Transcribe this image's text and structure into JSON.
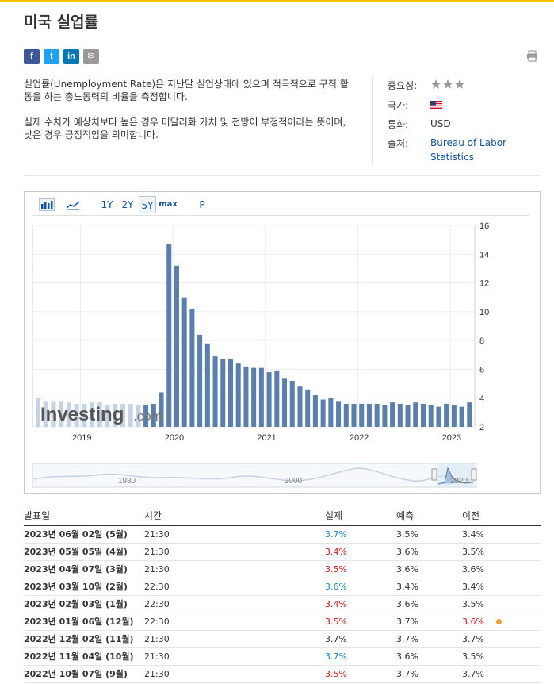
{
  "page": {
    "title": "미국 실업률"
  },
  "share": {
    "facebook": "f",
    "twitter": "t",
    "linkedin": "in",
    "email": "✉"
  },
  "description": {
    "p1": "실업률(Unemployment Rate)은 지난달 실업상태에 있으며 적극적으로 구직 활동을 하는 총노동력의 비율을 측정합니다.",
    "p2": "실제 수치가 예상치보다 높은 경우 미달러화 가치 및 전망이 부정적이라는 뜻이며, 낮은 경우 긍정적임을 의미합니다."
  },
  "meta": {
    "importance_label": "중요성:",
    "importance_stars": 3,
    "country_label": "국가:",
    "currency_label": "통화:",
    "currency_value": "USD",
    "source_label": "출처:",
    "source_value": "Bureau of Labor Statistics"
  },
  "chart_toolbar": {
    "buttons": [
      "1Y",
      "2Y",
      "5Y",
      "max",
      "P"
    ],
    "selected": "5Y"
  },
  "watermark": {
    "brand": "Investing",
    "suffix": ".com"
  },
  "chart_data": {
    "type": "bar",
    "ylim": [
      2,
      16
    ],
    "yticks": [
      "16",
      "14",
      "12",
      "10",
      "8",
      "6",
      "4",
      "2"
    ],
    "xticks": [
      "2019",
      "2020",
      "2021",
      "2022",
      "2023"
    ],
    "values": [
      4.0,
      3.8,
      3.8,
      3.8,
      3.7,
      3.6,
      3.6,
      3.7,
      3.7,
      3.5,
      3.6,
      3.6,
      3.6,
      3.5,
      3.5,
      3.6,
      4.4,
      14.7,
      13.2,
      11.0,
      10.2,
      8.4,
      7.8,
      6.9,
      6.7,
      6.7,
      6.4,
      6.2,
      6.1,
      6.1,
      5.8,
      5.9,
      5.4,
      5.2,
      4.8,
      4.6,
      4.2,
      3.9,
      4.0,
      3.8,
      3.6,
      3.6,
      3.6,
      3.6,
      3.6,
      3.5,
      3.7,
      3.6,
      3.5,
      3.7,
      3.6,
      3.5,
      3.4,
      3.6,
      3.5,
      3.4,
      3.7
    ]
  },
  "navigator": {
    "labels": [
      "1980",
      "2000",
      "2020"
    ]
  },
  "table": {
    "headers": {
      "date": "발표일",
      "time": "시간",
      "actual": "실제",
      "forecast": "예측",
      "previous": "이전"
    },
    "rows": [
      {
        "date": "2023년 06월 02일 (5월)",
        "time": "21:30",
        "actual": "3.7%",
        "actual_color": "blue",
        "forecast": "3.5%",
        "previous": "3.4%",
        "previous_color": ""
      },
      {
        "date": "2023년 05월 05일 (4월)",
        "time": "21:30",
        "actual": "3.4%",
        "actual_color": "red",
        "forecast": "3.6%",
        "previous": "3.5%",
        "previous_color": ""
      },
      {
        "date": "2023년 04월 07일 (3월)",
        "time": "21:30",
        "actual": "3.5%",
        "actual_color": "red",
        "forecast": "3.6%",
        "previous": "3.6%",
        "previous_color": ""
      },
      {
        "date": "2023년 03월 10일 (2월)",
        "time": "22:30",
        "actual": "3.6%",
        "actual_color": "blue",
        "forecast": "3.4%",
        "previous": "3.4%",
        "previous_color": ""
      },
      {
        "date": "2023년 02월 03일 (1월)",
        "time": "22:30",
        "actual": "3.4%",
        "actual_color": "red",
        "forecast": "3.6%",
        "previous": "3.5%",
        "previous_color": ""
      },
      {
        "date": "2023년 01월 06일 (12월)",
        "time": "22:30",
        "actual": "3.5%",
        "actual_color": "red",
        "forecast": "3.7%",
        "previous": "3.6%",
        "previous_color": "red",
        "revised": true
      },
      {
        "date": "2022년 12월 02일 (11월)",
        "time": "21:30",
        "actual": "3.7%",
        "actual_color": "",
        "forecast": "3.7%",
        "previous": "3.7%",
        "previous_color": ""
      },
      {
        "date": "2022년 11월 04일 (10월)",
        "time": "21:30",
        "actual": "3.7%",
        "actual_color": "blue",
        "forecast": "3.6%",
        "previous": "3.5%",
        "previous_color": ""
      },
      {
        "date": "2022년 10월 07일 (9월)",
        "time": "21:30",
        "actual": "3.5%",
        "actual_color": "red",
        "forecast": "3.7%",
        "previous": "3.7%",
        "previous_color": ""
      }
    ]
  },
  "colors": {
    "accent": "#f5c400",
    "bar": "#5b7fad",
    "bar_light": "#c5d3e5",
    "red": "#d11616",
    "blue": "#1a87c9",
    "link": "#1256a0"
  }
}
